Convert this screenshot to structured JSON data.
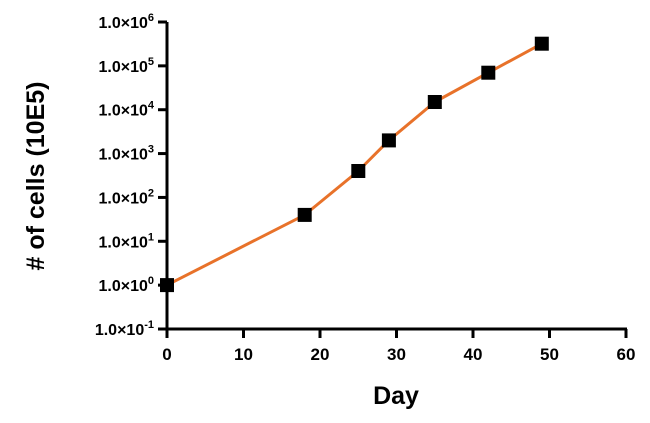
{
  "chart_data": {
    "type": "line",
    "title": "",
    "xlabel": "Day",
    "ylabel": "# of cells (10E5)",
    "xlim": [
      0,
      60
    ],
    "ylim": [
      0.1,
      1000000
    ],
    "yscale": "log",
    "grid": false,
    "legend": "none",
    "x_ticks": [
      {
        "value": 0,
        "label": "0"
      },
      {
        "value": 10,
        "label": "10"
      },
      {
        "value": 20,
        "label": "20"
      },
      {
        "value": 30,
        "label": "30"
      },
      {
        "value": 40,
        "label": "40"
      },
      {
        "value": 50,
        "label": "50"
      },
      {
        "value": 60,
        "label": "60"
      }
    ],
    "y_ticks": [
      {
        "value": 1000000,
        "mantissa": "1.0×10",
        "exponent": "6"
      },
      {
        "value": 100000,
        "mantissa": "1.0×10",
        "exponent": "5"
      },
      {
        "value": 10000,
        "mantissa": "1.0×10",
        "exponent": "4"
      },
      {
        "value": 1000,
        "mantissa": "1.0×10",
        "exponent": "3"
      },
      {
        "value": 100,
        "mantissa": "1.0×10",
        "exponent": "2"
      },
      {
        "value": 10,
        "mantissa": "1.0×10",
        "exponent": "1"
      },
      {
        "value": 1,
        "mantissa": "1.0×10",
        "exponent": "0"
      },
      {
        "value": 0.1,
        "mantissa": "1.0×10",
        "exponent": "-1"
      }
    ],
    "series": [
      {
        "x": [
          0,
          18,
          25,
          29,
          35,
          42,
          49
        ],
        "y": [
          1,
          40,
          400,
          2000,
          15000,
          70000,
          320000
        ],
        "line_color": "#e8722a",
        "marker_color": "#000000",
        "marker": "square"
      }
    ]
  }
}
